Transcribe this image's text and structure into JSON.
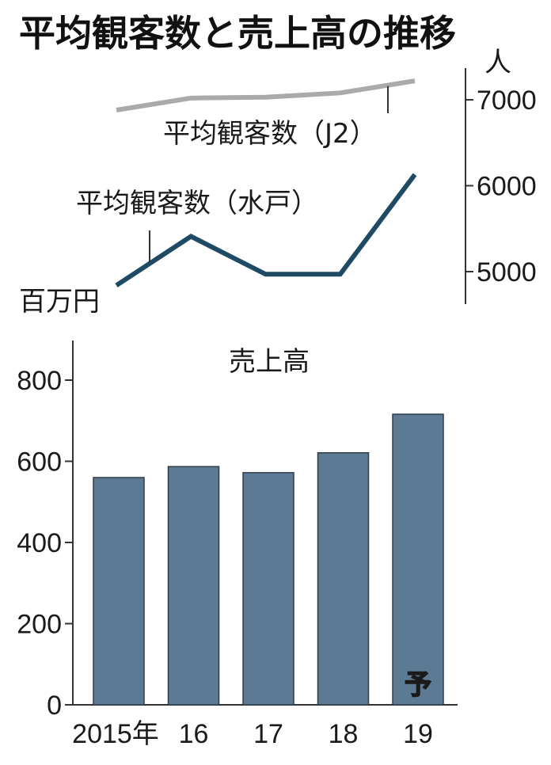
{
  "title": "平均観客数と売上高の推移",
  "chart_data": [
    {
      "type": "line",
      "x": [
        "2015年",
        "16",
        "17",
        "18",
        "19"
      ],
      "series": [
        {
          "name": "平均観客数（J2）",
          "values": [
            6880,
            7020,
            7030,
            7080,
            7220
          ],
          "color": "#aaaaaa"
        },
        {
          "name": "平均観客数（水戸）",
          "values": [
            4840,
            5410,
            4970,
            4970,
            6130
          ],
          "color": "#1f4a66"
        }
      ],
      "unit": "人",
      "yticks": [
        5000,
        6000,
        7000
      ],
      "ylim": [
        4700,
        7400
      ]
    },
    {
      "type": "bar",
      "title": "売上高",
      "unit": "百万円",
      "categories": [
        "2015年",
        "16",
        "17",
        "18",
        "19"
      ],
      "values": [
        560,
        587,
        572,
        621,
        716
      ],
      "yticks": [
        0,
        200,
        400,
        600,
        800
      ],
      "ylim": [
        0,
        880
      ],
      "annotation": "予",
      "bar_color": "#5c7a93"
    }
  ]
}
